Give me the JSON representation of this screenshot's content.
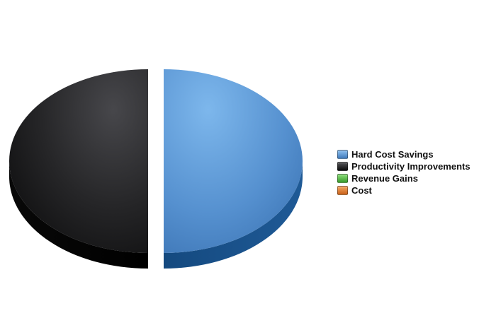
{
  "chart_data": {
    "type": "pie",
    "title": "",
    "legend_position": "right",
    "slices": [
      {
        "label": "Hard Cost Savings",
        "value": 50,
        "color": "#5b97d6"
      },
      {
        "label": "Productivity Improvements",
        "value": 50,
        "color": "#1c1c1e"
      },
      {
        "label": "Revenue Gains",
        "value": 0,
        "color": "#4caf3c"
      },
      {
        "label": "Cost",
        "value": 0,
        "color": "#e0782a"
      }
    ]
  }
}
